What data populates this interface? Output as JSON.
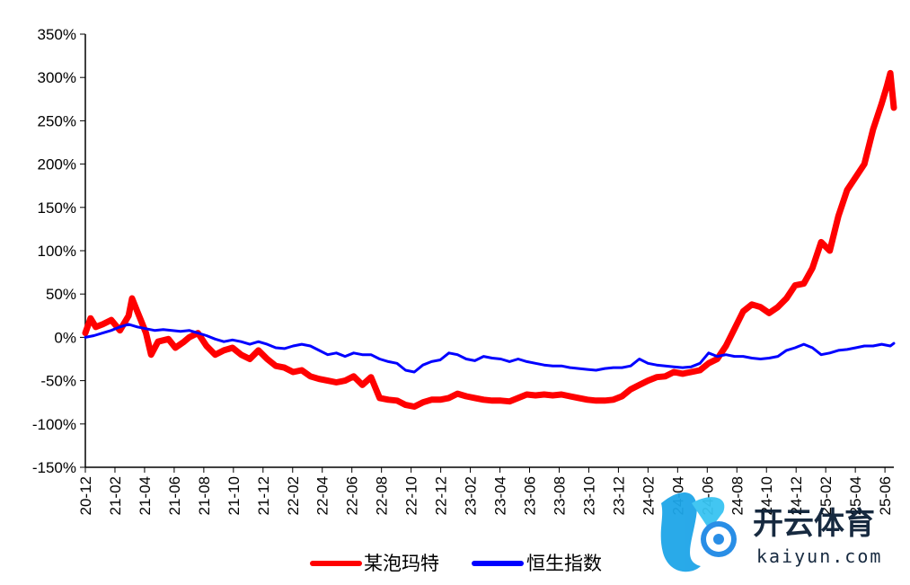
{
  "chart_data": {
    "type": "line",
    "title": "",
    "xlabel": "",
    "ylabel": "",
    "ylim": [
      -150,
      350
    ],
    "y_ticks": [
      -150,
      -100,
      -50,
      0,
      50,
      100,
      150,
      200,
      250,
      300,
      350
    ],
    "y_tick_labels": [
      "-150%",
      "-100%",
      "-50%",
      "0%",
      "50%",
      "100%",
      "150%",
      "200%",
      "250%",
      "300%",
      "350%"
    ],
    "x_tick_labels": [
      "20-12",
      "21-02",
      "21-04",
      "21-06",
      "21-08",
      "21-10",
      "21-12",
      "22-02",
      "22-04",
      "22-06",
      "22-08",
      "22-10",
      "22-12",
      "23-02",
      "23-04",
      "23-06",
      "23-08",
      "23-10",
      "23-12",
      "24-02",
      "24-04",
      "24-06",
      "24-08",
      "24-10",
      "24-12",
      "25-02",
      "25-04",
      "25-06"
    ],
    "x_range_months": [
      0,
      27.3
    ],
    "grid": false,
    "legend_position": "bottom",
    "series": [
      {
        "name": "某泡玛特",
        "color": "#ff0000",
        "values": [
          [
            0,
            5
          ],
          [
            0.3,
            22
          ],
          [
            0.6,
            12
          ],
          [
            1,
            15
          ],
          [
            1.5,
            20
          ],
          [
            2,
            8
          ],
          [
            2.5,
            25
          ],
          [
            2.7,
            45
          ],
          [
            3,
            30
          ],
          [
            3.2,
            20
          ],
          [
            3.5,
            5
          ],
          [
            3.8,
            -20
          ],
          [
            4.2,
            -5
          ],
          [
            4.8,
            -2
          ],
          [
            5.2,
            -12
          ],
          [
            5.7,
            -5
          ],
          [
            6,
            0
          ],
          [
            6.5,
            5
          ],
          [
            7,
            -10
          ],
          [
            7.5,
            -20
          ],
          [
            8,
            -15
          ],
          [
            8.5,
            -12
          ],
          [
            9,
            -20
          ],
          [
            9.5,
            -25
          ],
          [
            10,
            -15
          ],
          [
            10.5,
            -25
          ],
          [
            11,
            -33
          ],
          [
            11.5,
            -35
          ],
          [
            12,
            -40
          ],
          [
            12.5,
            -38
          ],
          [
            13,
            -45
          ],
          [
            13.5,
            -48
          ],
          [
            14,
            -50
          ],
          [
            14.5,
            -52
          ],
          [
            15,
            -50
          ],
          [
            15.5,
            -45
          ],
          [
            16,
            -55
          ],
          [
            16.5,
            -46
          ],
          [
            17,
            -70
          ],
          [
            17.5,
            -72
          ],
          [
            18,
            -73
          ],
          [
            18.5,
            -78
          ],
          [
            19,
            -80
          ],
          [
            19.5,
            -75
          ],
          [
            20,
            -72
          ],
          [
            20.5,
            -72
          ],
          [
            21,
            -70
          ],
          [
            21.5,
            -65
          ],
          [
            22,
            -68
          ],
          [
            22.5,
            -70
          ],
          [
            23,
            -72
          ],
          [
            23.5,
            -73
          ],
          [
            24,
            -73
          ],
          [
            24.5,
            -74
          ],
          [
            25,
            -70
          ],
          [
            25.5,
            -66
          ],
          [
            26,
            -67
          ],
          [
            26.5,
            -66
          ],
          [
            27,
            -67
          ],
          [
            27.5,
            -66
          ],
          [
            28,
            -68
          ],
          [
            28.5,
            -70
          ],
          [
            29,
            -72
          ],
          [
            29.5,
            -73
          ],
          [
            30,
            -73
          ],
          [
            30.5,
            -72
          ],
          [
            31,
            -68
          ],
          [
            31.5,
            -60
          ],
          [
            32,
            -55
          ],
          [
            32.5,
            -50
          ],
          [
            33,
            -46
          ],
          [
            33.5,
            -45
          ],
          [
            34,
            -40
          ],
          [
            34.5,
            -42
          ],
          [
            35,
            -40
          ],
          [
            35.5,
            -38
          ],
          [
            36,
            -30
          ],
          [
            36.5,
            -25
          ],
          [
            37,
            -10
          ],
          [
            37.5,
            10
          ],
          [
            38,
            30
          ],
          [
            38.5,
            38
          ],
          [
            39,
            35
          ],
          [
            39.5,
            28
          ],
          [
            40,
            35
          ],
          [
            40.5,
            45
          ],
          [
            41,
            60
          ],
          [
            41.5,
            62
          ],
          [
            42,
            80
          ],
          [
            42.5,
            110
          ],
          [
            43,
            100
          ],
          [
            43.5,
            140
          ],
          [
            44,
            170
          ],
          [
            44.5,
            185
          ],
          [
            45,
            200
          ],
          [
            45.5,
            240
          ],
          [
            46,
            270
          ],
          [
            46.3,
            290
          ],
          [
            46.5,
            305
          ],
          [
            46.7,
            265
          ]
        ]
      },
      {
        "name": "恒生指数",
        "color": "#0000ff",
        "values": [
          [
            0,
            0
          ],
          [
            0.5,
            2
          ],
          [
            1,
            5
          ],
          [
            1.5,
            8
          ],
          [
            2,
            12
          ],
          [
            2.5,
            15
          ],
          [
            3,
            12
          ],
          [
            3.5,
            10
          ],
          [
            4,
            8
          ],
          [
            4.5,
            9
          ],
          [
            5,
            8
          ],
          [
            5.5,
            7
          ],
          [
            6,
            8
          ],
          [
            6.5,
            5
          ],
          [
            7,
            2
          ],
          [
            7.5,
            -2
          ],
          [
            8,
            -5
          ],
          [
            8.5,
            -3
          ],
          [
            9,
            -5
          ],
          [
            9.5,
            -8
          ],
          [
            10,
            -5
          ],
          [
            10.5,
            -8
          ],
          [
            11,
            -12
          ],
          [
            11.5,
            -13
          ],
          [
            12,
            -10
          ],
          [
            12.5,
            -8
          ],
          [
            13,
            -10
          ],
          [
            13.5,
            -15
          ],
          [
            14,
            -20
          ],
          [
            14.5,
            -18
          ],
          [
            15,
            -22
          ],
          [
            15.5,
            -18
          ],
          [
            16,
            -20
          ],
          [
            16.5,
            -20
          ],
          [
            17,
            -25
          ],
          [
            17.5,
            -28
          ],
          [
            18,
            -30
          ],
          [
            18.5,
            -38
          ],
          [
            19,
            -40
          ],
          [
            19.5,
            -32
          ],
          [
            20,
            -28
          ],
          [
            20.5,
            -26
          ],
          [
            21,
            -18
          ],
          [
            21.5,
            -20
          ],
          [
            22,
            -25
          ],
          [
            22.5,
            -27
          ],
          [
            23,
            -22
          ],
          [
            23.5,
            -24
          ],
          [
            24,
            -25
          ],
          [
            24.5,
            -28
          ],
          [
            25,
            -25
          ],
          [
            25.5,
            -28
          ],
          [
            26,
            -30
          ],
          [
            26.5,
            -32
          ],
          [
            27,
            -33
          ],
          [
            27.5,
            -33
          ],
          [
            28,
            -35
          ],
          [
            28.5,
            -36
          ],
          [
            29,
            -37
          ],
          [
            29.5,
            -38
          ],
          [
            30,
            -36
          ],
          [
            30.5,
            -35
          ],
          [
            31,
            -35
          ],
          [
            31.5,
            -33
          ],
          [
            32,
            -25
          ],
          [
            32.5,
            -30
          ],
          [
            33,
            -32
          ],
          [
            33.5,
            -33
          ],
          [
            34,
            -34
          ],
          [
            34.5,
            -35
          ],
          [
            35,
            -34
          ],
          [
            35.5,
            -30
          ],
          [
            36,
            -18
          ],
          [
            36.5,
            -22
          ],
          [
            37,
            -20
          ],
          [
            37.5,
            -22
          ],
          [
            38,
            -22
          ],
          [
            38.5,
            -24
          ],
          [
            39,
            -25
          ],
          [
            39.5,
            -24
          ],
          [
            40,
            -22
          ],
          [
            40.5,
            -15
          ],
          [
            41,
            -12
          ],
          [
            41.5,
            -8
          ],
          [
            42,
            -12
          ],
          [
            42.5,
            -20
          ],
          [
            43,
            -18
          ],
          [
            43.5,
            -15
          ],
          [
            44,
            -14
          ],
          [
            44.5,
            -12
          ],
          [
            45,
            -10
          ],
          [
            45.5,
            -10
          ],
          [
            46,
            -8
          ],
          [
            46.5,
            -10
          ],
          [
            46.7,
            -7
          ]
        ]
      }
    ]
  },
  "watermark": {
    "brand_text": "开云体育",
    "brand_sub": "kaiyun.com"
  }
}
